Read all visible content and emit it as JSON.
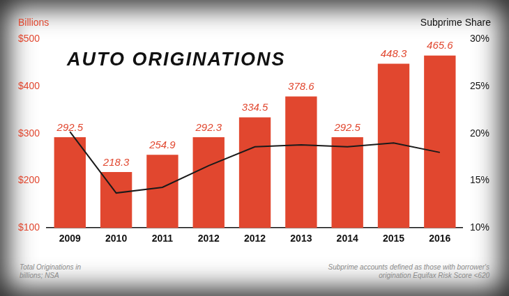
{
  "chart_data": {
    "type": "bar",
    "title": "AUTO ORIGINATIONS",
    "y_label": "Billions",
    "y2_label": "Subprime Share",
    "annotations": [
      "Total Originations in billions; NSA",
      "Subprime accounts defined as those with borrower's origination Equifax Risk Score <620"
    ],
    "categories": [
      "2009",
      "2010",
      "2011",
      "2012",
      "2012",
      "2013",
      "2014",
      "2015",
      "2016"
    ],
    "series": [
      {
        "type": "bar",
        "color": "#e1472f",
        "values": [
          292.5,
          218.3,
          254.9,
          292.3,
          334.5,
          378.6,
          292.5,
          448.3,
          465.6
        ],
        "data_labels": true
      },
      {
        "type": "line",
        "color": "#1a1a1a",
        "axis": "y2",
        "marker": "none",
        "values": [
          20.2,
          13.7,
          14.3,
          16.6,
          18.6,
          18.8,
          18.6,
          19.0,
          18.0
        ]
      }
    ],
    "ylim": [
      100,
      500
    ],
    "yticks": [
      {
        "value": 100,
        "label": "$100"
      },
      {
        "value": 200,
        "label": "$200"
      },
      {
        "value": 300,
        "label": "$300"
      },
      {
        "value": 400,
        "label": "$400"
      },
      {
        "value": 500,
        "label": "$500"
      }
    ],
    "y2lim": [
      10,
      30
    ],
    "y2ticks": [
      {
        "value": 10,
        "label": "10%"
      },
      {
        "value": 15,
        "label": "15%"
      },
      {
        "value": 20,
        "label": "20%"
      },
      {
        "value": 25,
        "label": "25%"
      },
      {
        "value": 30,
        "label": "30%"
      }
    ],
    "grid": false
  }
}
